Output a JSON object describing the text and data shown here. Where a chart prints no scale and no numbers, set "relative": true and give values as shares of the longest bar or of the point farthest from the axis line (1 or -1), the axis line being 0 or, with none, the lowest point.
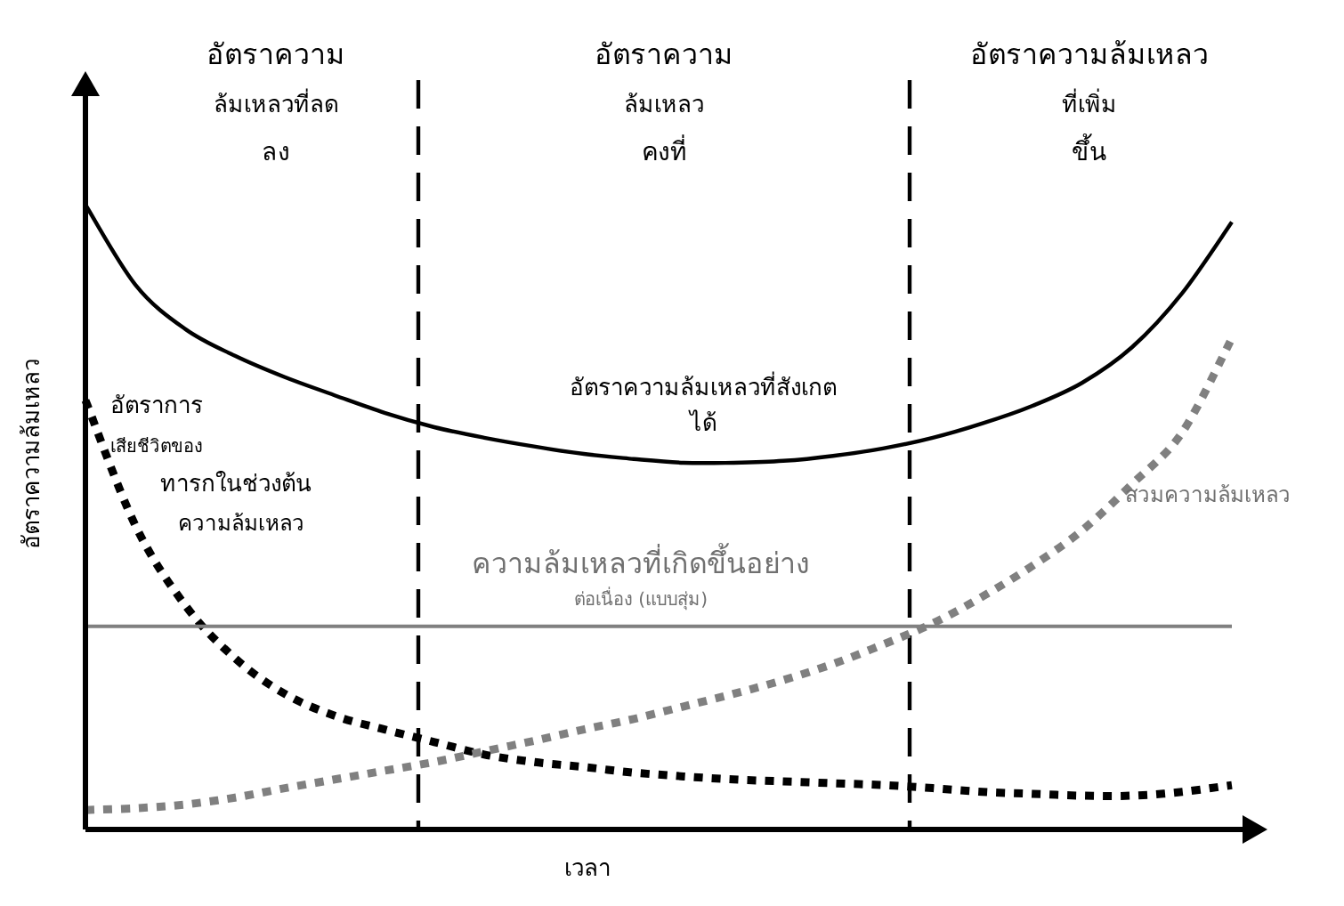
{
  "chart_data": {
    "type": "line",
    "relative": true,
    "xlabel": "เวลา",
    "ylabel": "อัตราความล้มเหลว",
    "categories": [
      null,
      null,
      null,
      null,
      null,
      null,
      null,
      null,
      null,
      null,
      null,
      null,
      null,
      null,
      null,
      null,
      null,
      null,
      null,
      null,
      null,
      null,
      null,
      null
    ],
    "series": [
      {
        "name": "อัตราความล้มเหลวที่สังเกต\nได้",
        "color": "#000000",
        "line_style": "solid",
        "values": [
          1.0,
          0.872,
          0.801,
          0.758,
          0.724,
          0.695,
          0.667,
          0.644,
          0.627,
          0.613,
          0.601,
          0.593,
          0.587,
          0.587,
          0.59,
          0.598,
          0.61,
          0.627,
          0.65,
          0.678,
          0.715,
          0.772,
          0.858,
          0.972
        ]
      },
      {
        "name": "อัตราการ\nเสียชีวิตของ\nทารกในช่วงต้น\nความล้มเหลว",
        "color": "#000000",
        "line_style": "dotted",
        "values": [
          0.687,
          0.487,
          0.359,
          0.274,
          0.217,
          0.182,
          0.16,
          0.14,
          0.12,
          0.108,
          0.1,
          0.091,
          0.085,
          0.08,
          0.077,
          0.074,
          0.071,
          0.066,
          0.06,
          0.057,
          0.054,
          0.054,
          0.06,
          0.071
        ]
      },
      {
        "name": "ความล้มเหลวที่เกิดขึ้นอย่าง\nต่อเนื่อง (แบบสุ่ม)",
        "color": "#808080",
        "line_style": "solid",
        "values": [
          0.325,
          0.325,
          0.325,
          0.325,
          0.325,
          0.325,
          0.325,
          0.325,
          0.325,
          0.325,
          0.325,
          0.325,
          0.325,
          0.325,
          0.325,
          0.325,
          0.325,
          0.325,
          0.325,
          0.325,
          0.325,
          0.325,
          0.325,
          0.325
        ]
      },
      {
        "name": "สวมความล้มเหลว",
        "color": "#808080",
        "line_style": "dotted",
        "values": [
          0.031,
          0.034,
          0.04,
          0.051,
          0.066,
          0.08,
          0.094,
          0.108,
          0.125,
          0.142,
          0.16,
          0.177,
          0.197,
          0.217,
          0.239,
          0.265,
          0.296,
          0.33,
          0.373,
          0.422,
          0.479,
          0.553,
          0.635,
          0.786
        ]
      }
    ],
    "annotations": [
      "อัตราความ\nล้มเหลวที่ลด\nลง",
      "อัตราความ\nล้มเหลว\nคงที่",
      "อัตราความล้มเหลว\nที่เพิ่ม\nขึ้น"
    ]
  }
}
